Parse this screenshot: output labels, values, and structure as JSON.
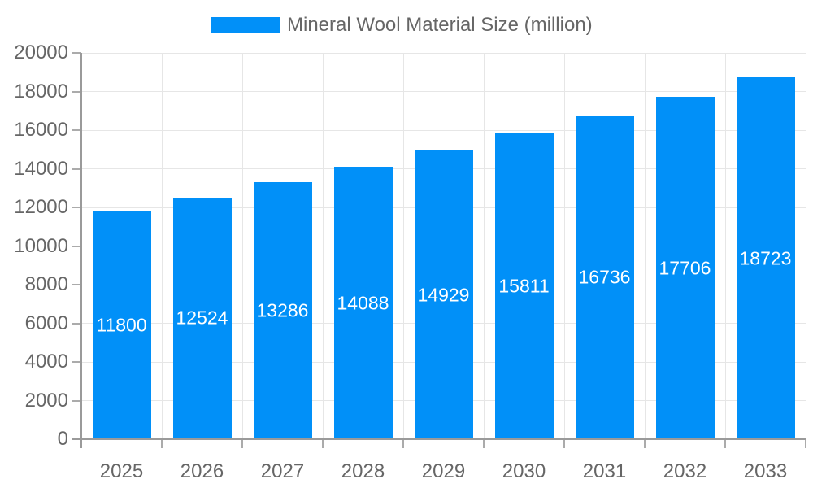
{
  "chart_data": {
    "type": "bar",
    "title": "",
    "legend": "Mineral Wool Material Size (million)",
    "legend_position": "top",
    "categories": [
      "2025",
      "2026",
      "2027",
      "2028",
      "2029",
      "2030",
      "2031",
      "2032",
      "2033"
    ],
    "series": [
      {
        "name": "Mineral Wool Material Size (million)",
        "values": [
          11800,
          12524,
          13286,
          14088,
          14929,
          15811,
          16736,
          17706,
          18723
        ]
      }
    ],
    "bar_value_labels": [
      "11800",
      "12524",
      "13286",
      "14088",
      "14929",
      "15811",
      "16736",
      "17706",
      "18723"
    ],
    "xlabel": "",
    "ylabel": "",
    "ylim": [
      0,
      20000
    ],
    "ytick_step": 2000,
    "ytick_labels": [
      "0",
      "2000",
      "4000",
      "6000",
      "8000",
      "10000",
      "12000",
      "14000",
      "16000",
      "18000",
      "20000"
    ],
    "grid": true,
    "colors": {
      "bar": "#0190f8",
      "bar_label": "#ffffff",
      "axis_text": "#666666",
      "gridline": "#e6e6e6",
      "axis_line": "#9a9a9a",
      "tick_mark": "#ababab",
      "background": "#ffffff"
    }
  }
}
